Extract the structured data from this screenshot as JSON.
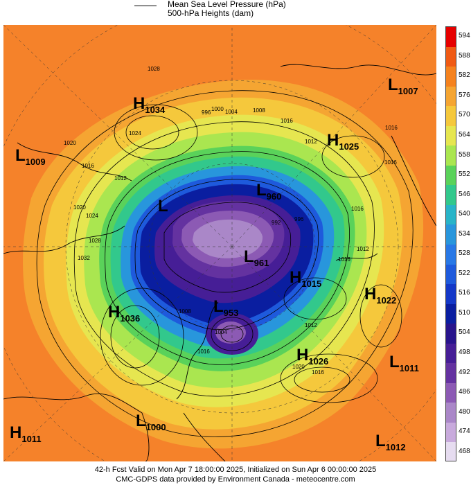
{
  "legend": {
    "line1": "Mean Sea Level Pressure (hPa)",
    "line2": "500-hPa Heights (dam)"
  },
  "colorbar": {
    "ticks": [
      "594",
      "588",
      "582",
      "576",
      "570",
      "564",
      "558",
      "552",
      "546",
      "540",
      "534",
      "528",
      "522",
      "516",
      "510",
      "504",
      "498",
      "492",
      "486",
      "480",
      "474",
      "468"
    ],
    "colors": [
      "#e60000",
      "#f05a14",
      "#f5821e",
      "#f5a532",
      "#f5c83c",
      "#e6e650",
      "#aae650",
      "#5ad25a",
      "#32c88c",
      "#28b4c8",
      "#2896dc",
      "#2878e6",
      "#1e5adc",
      "#1438c8",
      "#0a1ea0",
      "#28148c",
      "#461e96",
      "#6432a0",
      "#8c5ab4",
      "#aa87c8",
      "#c8aadc",
      "#e6dcf0"
    ]
  },
  "pressure_centers": [
    {
      "type": "H",
      "value": "1034"
    },
    {
      "type": "L",
      "value": "1009"
    },
    {
      "type": "H",
      "value": "1025"
    },
    {
      "type": "L",
      "value": "1007"
    },
    {
      "type": "L",
      "value": "960"
    },
    {
      "type": "L",
      "value": "961"
    },
    {
      "type": "H",
      "value": "1015"
    },
    {
      "type": "H",
      "value": "1022"
    },
    {
      "type": "H",
      "value": "1036"
    },
    {
      "type": "L",
      "value": "953"
    },
    {
      "type": "H",
      "value": "1026"
    },
    {
      "type": "L",
      "value": "1011"
    },
    {
      "type": "L",
      "value": "1000"
    },
    {
      "type": "H",
      "value": "1011"
    },
    {
      "type": "L",
      "value": "1012"
    },
    {
      "type": "L",
      "value": ""
    }
  ],
  "isobar_labels": [
    "1016",
    "1028",
    "1024",
    "1020",
    "1016",
    "1012",
    "1000",
    "996",
    "1004",
    "1008",
    "1016",
    "1012",
    "996",
    "992",
    "1016",
    "1012",
    "1016",
    "1012",
    "1020",
    "1024",
    "1028",
    "1032",
    "1008",
    "1004",
    "1016",
    "1020",
    "1016",
    "1016",
    "1016"
  ],
  "footer": {
    "line1": "42-h Fcst Valid on Mon Apr  7 18:00:00 2025, Initialized on Sun Apr  6 00:00:00 2025",
    "line2": "CMC-GDPS data provided by Environment Canada - meteocentre.com"
  }
}
